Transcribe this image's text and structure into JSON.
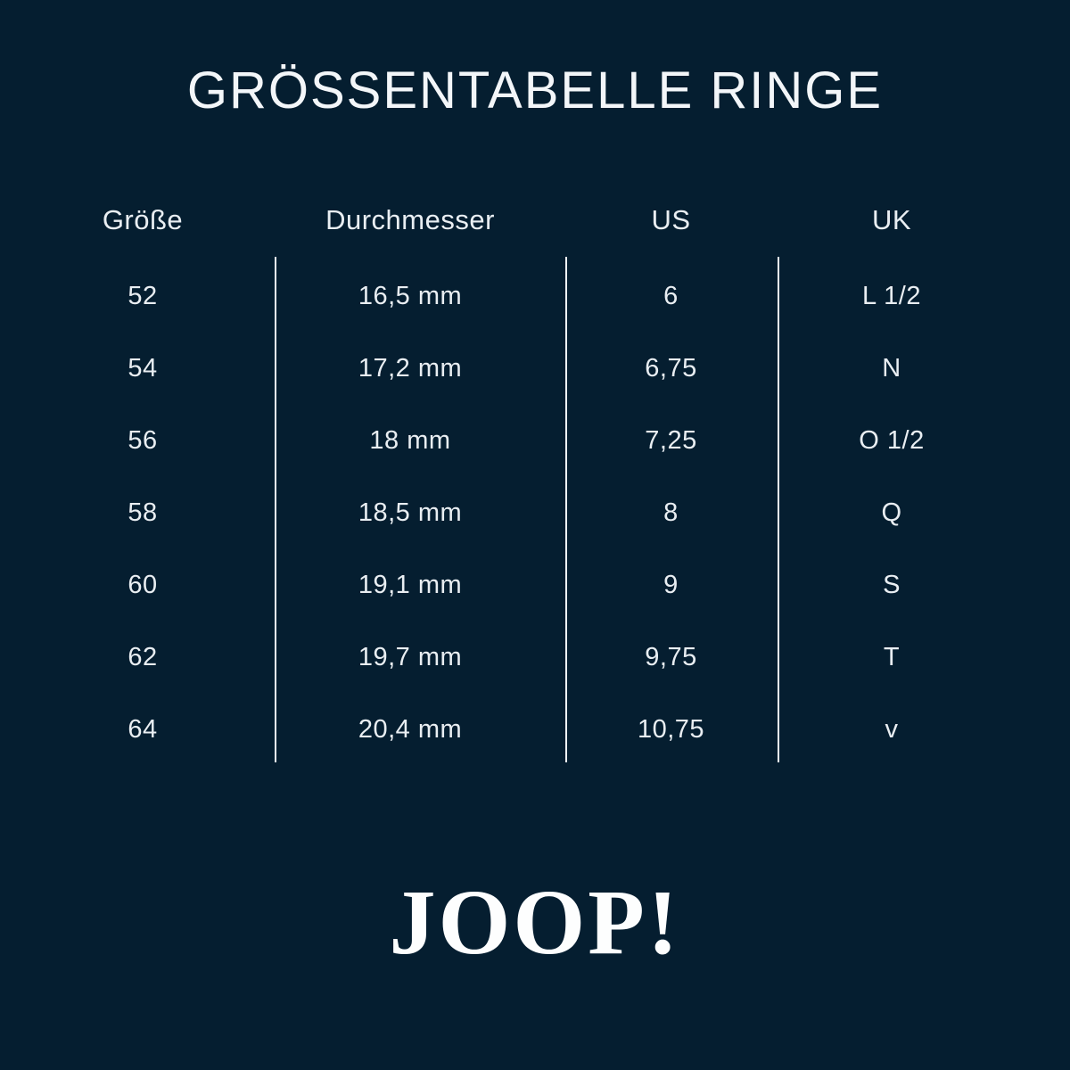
{
  "title": "GRÖSSENTABELLE RINGE",
  "logo": "JOOP!",
  "colors": {
    "background": "#051E30",
    "text": "#E9EEF2",
    "divider": "#F2F6F9"
  },
  "chart_data": {
    "type": "table",
    "title": "GRÖSSENTABELLE RINGE",
    "columns": [
      "Größe",
      "Durchmesser",
      "US",
      "UK"
    ],
    "rows": [
      [
        "52",
        "16,5 mm",
        "6",
        "L 1/2"
      ],
      [
        "54",
        "17,2 mm",
        "6,75",
        "N"
      ],
      [
        "56",
        "18 mm",
        "7,25",
        "O 1/2"
      ],
      [
        "58",
        "18,5 mm",
        "8",
        "Q"
      ],
      [
        "60",
        "19,1 mm",
        "9",
        "S"
      ],
      [
        "62",
        "19,7 mm",
        "9,75",
        "T"
      ],
      [
        "64",
        "20,4 mm",
        "10,75",
        "v"
      ]
    ]
  }
}
